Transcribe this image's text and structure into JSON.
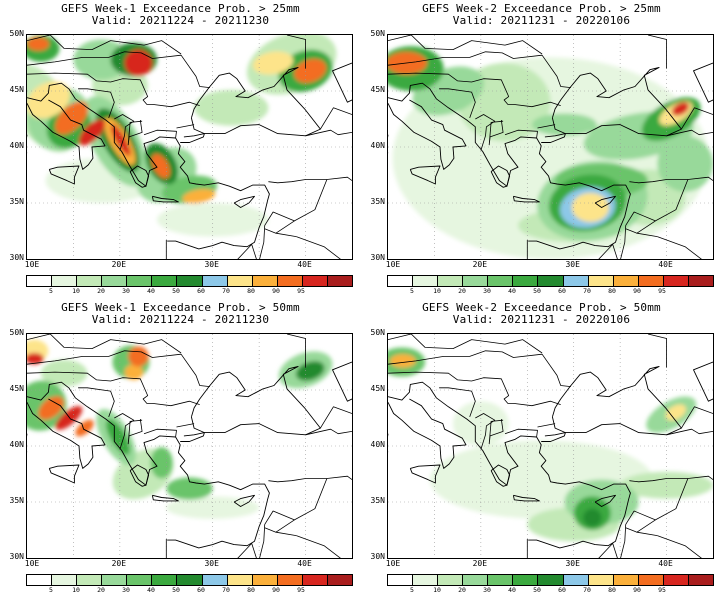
{
  "colors": {
    "scale": [
      "#ffffff",
      "#e6f6e0",
      "#c3e9b7",
      "#98d99a",
      "#6ac46a",
      "#3ba93f",
      "#238a2f",
      "#8dc8e8",
      "#fde48a",
      "#fbb03b",
      "#f36d20",
      "#d7261f",
      "#a91d1d"
    ]
  },
  "colorbar": {
    "labels": [
      "5",
      "10",
      "20",
      "30",
      "40",
      "50",
      "60",
      "70",
      "80",
      "90",
      "95"
    ]
  },
  "axes": {
    "lat_labels": [
      "50N",
      "45N",
      "40N",
      "35N",
      "30N"
    ],
    "lon_labels": [
      "10E",
      "20E",
      "30E",
      "40E"
    ]
  },
  "panels": [
    {
      "title": "GEFS Week-1 Exceedance Prob. > 25mm",
      "valid": "Valid: 20211224 - 20211230"
    },
    {
      "title": "GEFS Week-2 Exceedance Prob. > 25mm",
      "valid": "Valid: 20211231 - 20220106"
    },
    {
      "title": "GEFS Week-1 Exceedance Prob. > 50mm",
      "valid": "Valid: 20211224 - 20211230"
    },
    {
      "title": "GEFS Week-2 Exceedance Prob. > 50mm",
      "valid": "Valid: 20211231 - 20220106"
    }
  ]
}
